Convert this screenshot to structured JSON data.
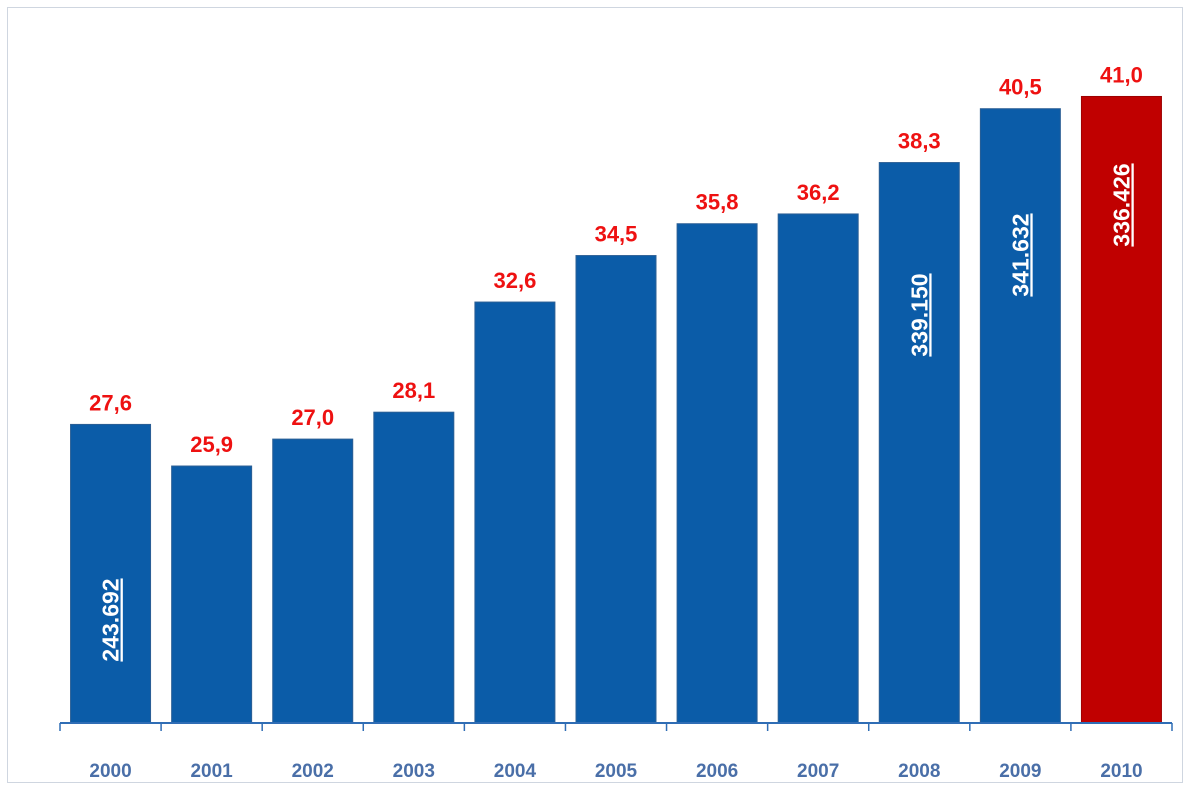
{
  "chart_data": {
    "type": "bar",
    "title": "",
    "xlabel": "",
    "ylabel": "",
    "categories": [
      "2000",
      "2001",
      "2002",
      "2003",
      "2004",
      "2005",
      "2006",
      "2007",
      "2008",
      "2009",
      "2010"
    ],
    "values": [
      27.6,
      25.9,
      27.0,
      28.1,
      32.6,
      34.5,
      35.8,
      36.2,
      38.3,
      40.5,
      41.0
    ],
    "value_labels": [
      "27,6",
      "25,9",
      "27,0",
      "28,1",
      "32,6",
      "34,5",
      "35,8",
      "36,2",
      "38,3",
      "40,5",
      "41,0"
    ],
    "inner_labels": [
      {
        "category": "2000",
        "text": "243.692"
      },
      {
        "category": "2008",
        "text": "339.150"
      },
      {
        "category": "2009",
        "text": "341.632"
      },
      {
        "category": "2010",
        "text": "336.426"
      }
    ],
    "colors": {
      "bar": "#0b5ca8",
      "highlight_bar": "#c00000",
      "highlight_category": "2010",
      "value_label": "#ee1111",
      "tick_label": "#4a6fa8",
      "axis": "#2f6db5"
    },
    "ylim": [
      15.4,
      42.0
    ],
    "grid": false,
    "legend": "none"
  }
}
